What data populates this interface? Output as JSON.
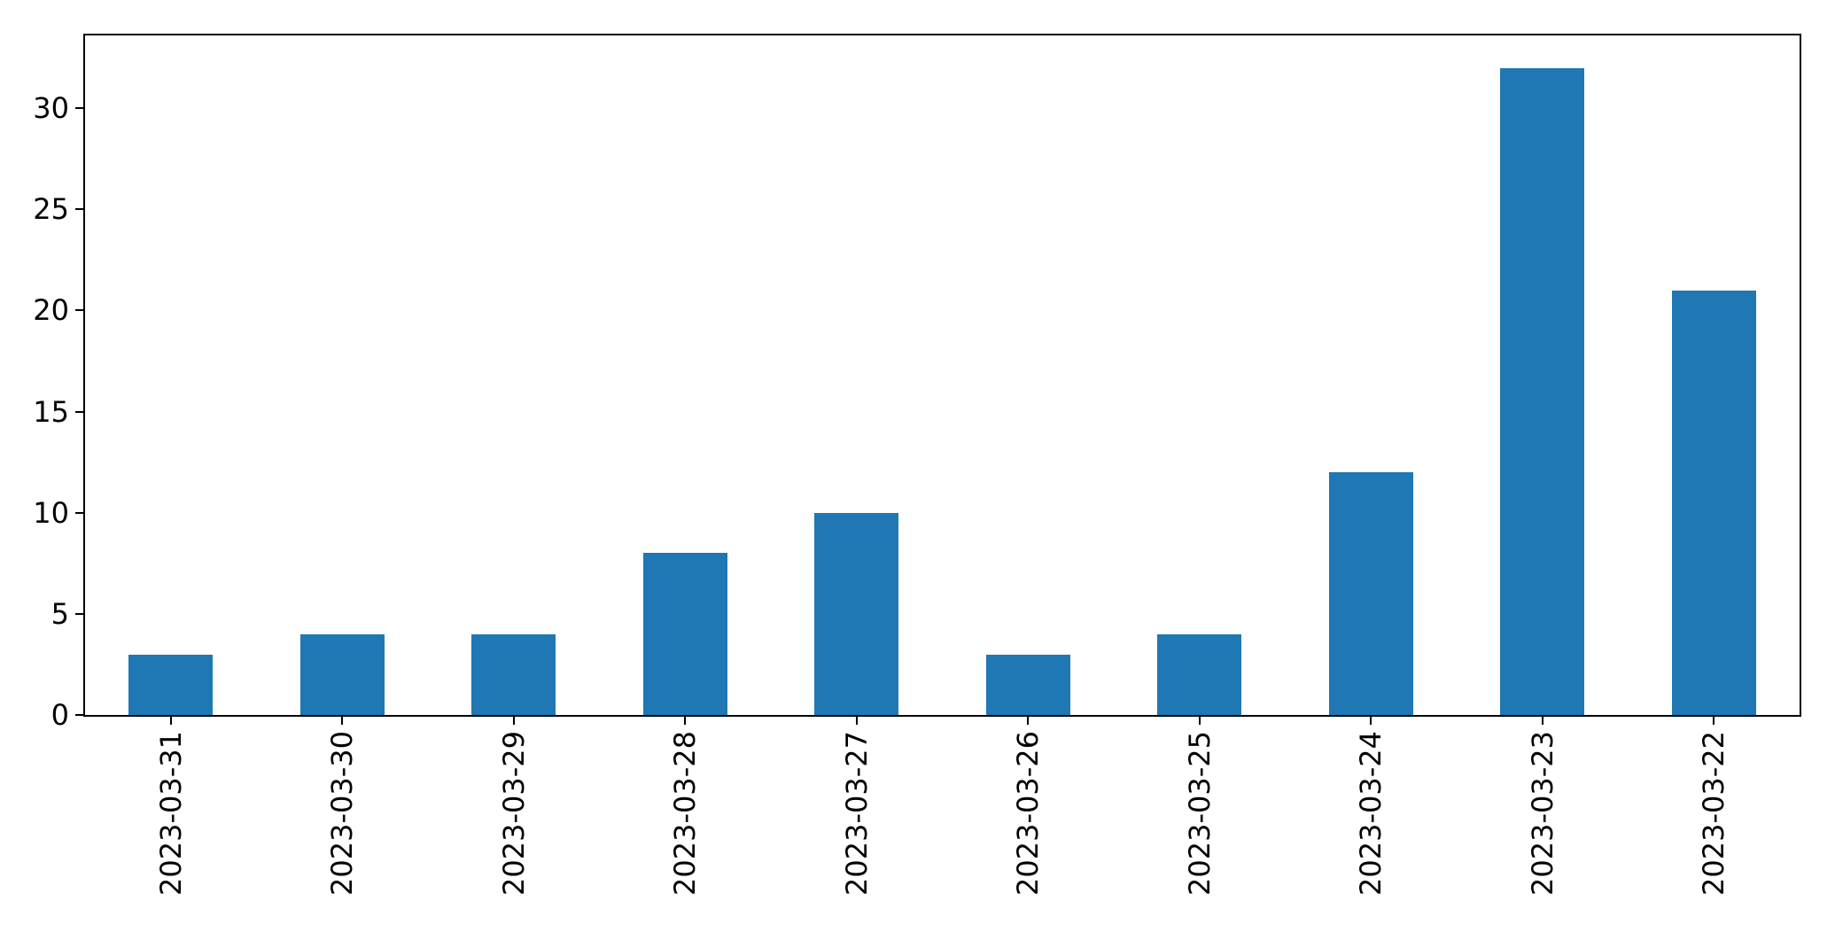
{
  "figure": {
    "background_color": "#ffffff",
    "text_color": "#000000",
    "spine_color": "#000000"
  },
  "chart_data": {
    "type": "bar",
    "title": "",
    "xlabel": "",
    "ylabel": "",
    "categories": [
      "2023-03-31",
      "2023-03-30",
      "2023-03-29",
      "2023-03-28",
      "2023-03-27",
      "2023-03-26",
      "2023-03-25",
      "2023-03-24",
      "2023-03-23",
      "2023-03-22"
    ],
    "values": [
      3,
      4,
      4,
      8,
      10,
      3,
      4,
      12,
      32,
      21
    ],
    "yticks": [
      0,
      5,
      10,
      15,
      20,
      25,
      30
    ],
    "ylim": [
      0,
      33.6
    ],
    "bar_color": "#1f77b4",
    "bar_width_fraction": 0.49,
    "x_tick_rotation": 90,
    "grid": false,
    "legend": false
  }
}
